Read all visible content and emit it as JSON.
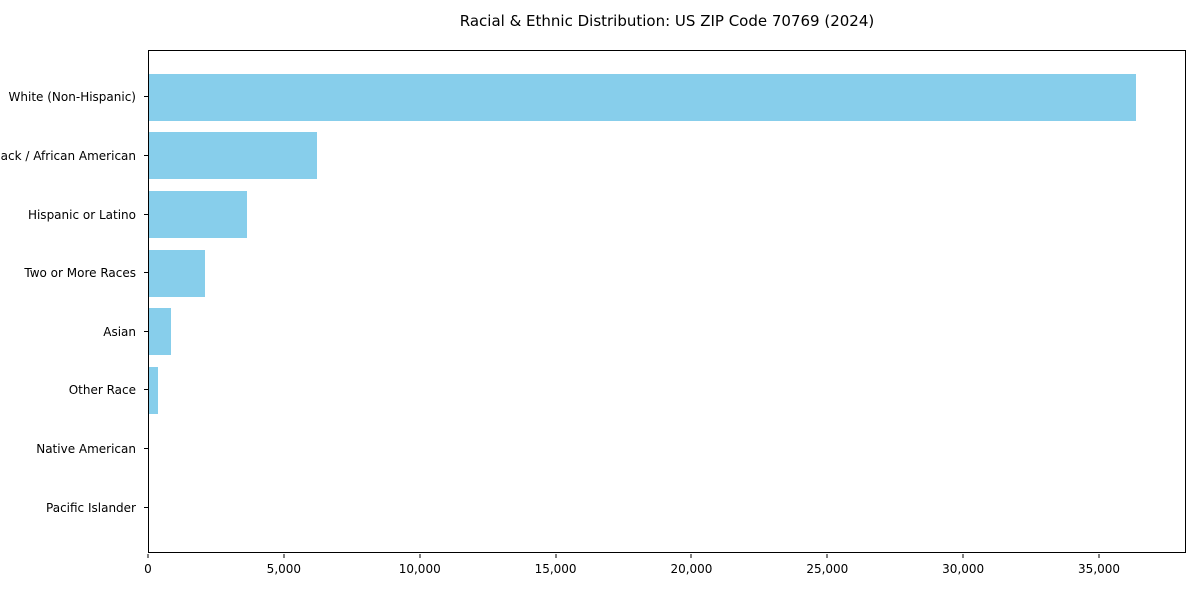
{
  "title": "Racial & Ethnic Distribution: US ZIP Code 70769 (2024)",
  "colors": {
    "bar": "#87CEEB",
    "axis": "#000000",
    "text": "#000000",
    "background": "#ffffff"
  },
  "chart_data": {
    "type": "bar",
    "orientation": "horizontal",
    "title": "Racial & Ethnic Distribution: US ZIP Code 70769 (2024)",
    "xlabel": "",
    "ylabel": "",
    "categories": [
      "White (Non-Hispanic)",
      "Black / African American",
      "Hispanic or Latino",
      "Two or More Races",
      "Asian",
      "Other Race",
      "Native American",
      "Pacific Islander"
    ],
    "values": [
      36400,
      6200,
      3600,
      2050,
      820,
      340,
      0,
      0
    ],
    "bar_color": "#87CEEB",
    "xlim": [
      0,
      38200
    ],
    "x_ticks": [
      0,
      5000,
      10000,
      15000,
      20000,
      25000,
      30000,
      35000
    ],
    "x_tick_labels": [
      "0",
      "5,000",
      "10,000",
      "15,000",
      "20,000",
      "25,000",
      "30,000",
      "35,000"
    ],
    "grid": false,
    "legend": null
  }
}
